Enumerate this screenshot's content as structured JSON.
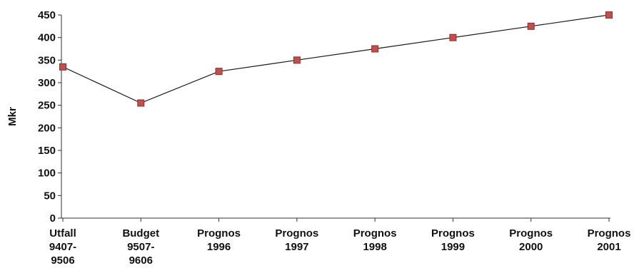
{
  "chart_data": {
    "type": "line",
    "categories": [
      [
        "Utfall",
        "9407-",
        "9506"
      ],
      [
        "Budget",
        "9507-",
        "9606"
      ],
      [
        "Prognos",
        "1996"
      ],
      [
        "Prognos",
        "1997"
      ],
      [
        "Prognos",
        "1998"
      ],
      [
        "Prognos",
        "1999"
      ],
      [
        "Prognos",
        "2000"
      ],
      [
        "Prognos",
        "2001"
      ]
    ],
    "series": [
      {
        "values": [
          335,
          255,
          325,
          350,
          375,
          400,
          425,
          450
        ]
      }
    ],
    "ylabel": "Mkr",
    "xlabel": "",
    "ylim": [
      0,
      450
    ],
    "yticks": [
      0,
      50,
      100,
      150,
      200,
      250,
      300,
      350,
      400,
      450
    ],
    "grid": false,
    "colors": {
      "line": "#1a1a1a",
      "marker_fill": "#c0504d",
      "marker_stroke": "#8b2e2c",
      "axis": "#333333"
    }
  }
}
